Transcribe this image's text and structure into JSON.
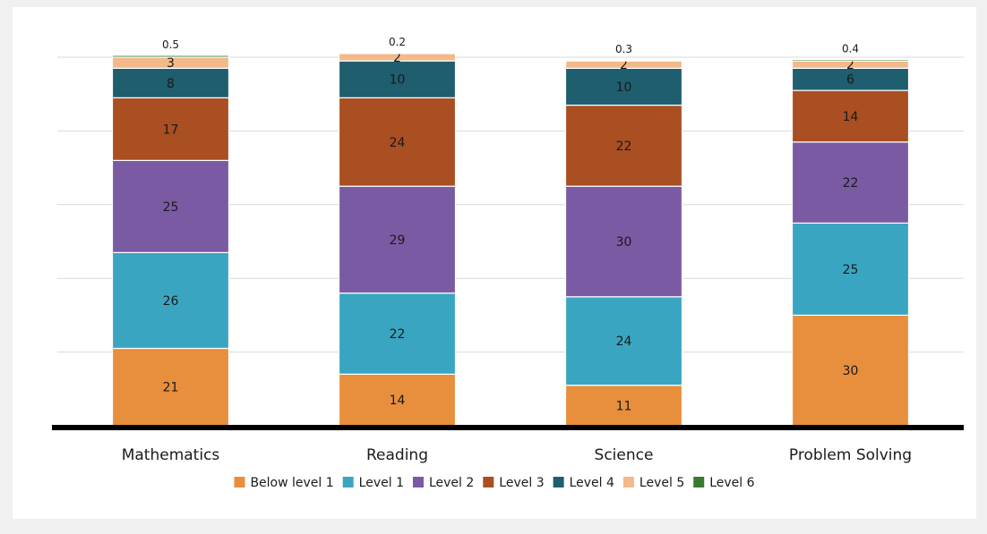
{
  "chart_data": {
    "type": "bar",
    "stacked": true,
    "categories": [
      "Mathematics",
      "Reading",
      "Science",
      "Problem Solving"
    ],
    "series": [
      {
        "name": "Below level 1",
        "color": "#e88f3d",
        "values": [
          21,
          14,
          11,
          30
        ]
      },
      {
        "name": "Level 1",
        "color": "#3aa5c1",
        "values": [
          26,
          22,
          24,
          25
        ]
      },
      {
        "name": "Level 2",
        "color": "#7a5ba3",
        "values": [
          25,
          29,
          30,
          22
        ]
      },
      {
        "name": "Level 3",
        "color": "#a94f22",
        "values": [
          17,
          24,
          22,
          14
        ]
      },
      {
        "name": "Level 4",
        "color": "#1e5e6e",
        "values": [
          8,
          10,
          10,
          6
        ]
      },
      {
        "name": "Level 5",
        "color": "#f2b98a",
        "values": [
          3,
          2,
          2,
          2
        ]
      },
      {
        "name": "Level 6",
        "color": "#3a7a2c",
        "values": [
          0.5,
          0.2,
          0.3,
          0.4
        ]
      }
    ],
    "ylim": [
      0,
      100
    ],
    "grid": true,
    "legend_position": "bottom"
  }
}
